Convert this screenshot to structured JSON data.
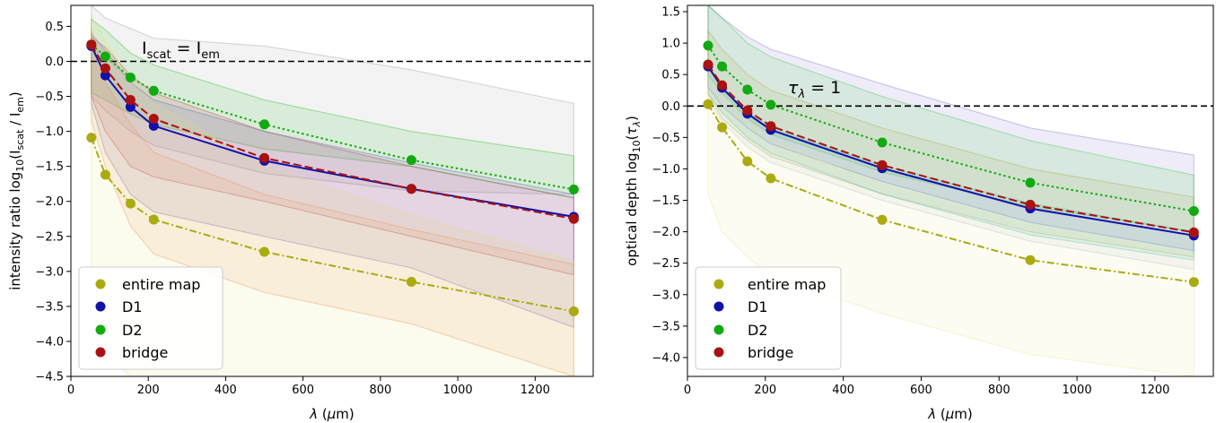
{
  "chart_data": [
    {
      "type": "line",
      "xlabel": "λ (μm)",
      "xlabel_parts": {
        "sym": "λ",
        "open": " (",
        "mu": "μ",
        "close": "m)"
      },
      "ylabel": "intensity ratio  log10(Iscat / Iem)",
      "ylabel_parts": {
        "pre": "intensity ratio  log",
        "sub10": "10",
        "open": "(I",
        "sub_a": "scat",
        "mid": " / I",
        "sub_b": "em",
        "close": ")"
      },
      "xlim": [
        0,
        1350
      ],
      "ylim": [
        -4.5,
        0.8
      ],
      "xticks": [
        0,
        200,
        400,
        600,
        800,
        1000,
        1200
      ],
      "yticks": [
        -4.5,
        -4.0,
        -3.5,
        -3.0,
        -2.5,
        -2.0,
        -1.5,
        -1.0,
        -0.5,
        0.0,
        0.5
      ],
      "ytick_labels": [
        "−4.5",
        "−4.0",
        "−3.5",
        "−3.0",
        "−2.5",
        "−2.0",
        "−1.5",
        "−1.0",
        "−0.5",
        "0.0",
        "0.5"
      ],
      "reference_line": {
        "y": 0,
        "style": "dashed",
        "label_parts": {
          "a": "I",
          "a_sub": "scat",
          "eq": " = ",
          "b": "I",
          "b_sub": "em"
        }
      },
      "x": [
        53,
        89,
        154,
        214,
        500,
        880,
        1300
      ],
      "series": [
        {
          "name": "entire map",
          "color": "#aaaa11",
          "dash": "dashdot",
          "values": [
            -1.09,
            -1.62,
            -2.03,
            -2.26,
            -2.72,
            -3.15,
            -3.57
          ]
        },
        {
          "name": "D1",
          "color": "#1010aa",
          "dash": "solid",
          "values": [
            0.22,
            -0.2,
            -0.65,
            -0.92,
            -1.42,
            -1.82,
            -2.22
          ]
        },
        {
          "name": "D2",
          "color": "#11aa11",
          "dash": "dotted",
          "values": [
            0.24,
            0.07,
            -0.23,
            -0.42,
            -0.9,
            -1.41,
            -1.83
          ]
        },
        {
          "name": "bridge",
          "color": "#aa1111",
          "dash": "dashed",
          "values": [
            0.24,
            -0.1,
            -0.55,
            -0.82,
            -1.38,
            -1.82,
            -2.25
          ]
        }
      ],
      "bands": [
        {
          "color": "#999999",
          "upper": [
            0.8,
            0.62,
            0.47,
            0.33,
            0.22,
            -0.12,
            -0.6
          ],
          "lower": [
            -0.5,
            -0.7,
            -1.0,
            -1.2,
            -1.6,
            -1.85,
            -1.9
          ]
        },
        {
          "color": "#22bb22",
          "upper": [
            0.6,
            0.45,
            0.12,
            -0.05,
            -0.55,
            -1.0,
            -1.35
          ],
          "lower": [
            -0.45,
            -0.55,
            -0.75,
            -0.9,
            -1.25,
            -1.5,
            -1.95
          ]
        },
        {
          "color": "#bb3333",
          "upper": [
            0.35,
            0.2,
            -0.2,
            -0.45,
            -1.0,
            -1.5,
            -1.95
          ],
          "lower": [
            -0.5,
            -1.0,
            -1.5,
            -1.65,
            -2.0,
            -2.5,
            -3.05
          ]
        },
        {
          "color": "#6655bb",
          "upper": [
            0.4,
            0.15,
            -0.3,
            -0.55,
            -1.0,
            -1.45,
            -1.9
          ],
          "lower": [
            -0.6,
            -1.3,
            -1.9,
            -2.15,
            -2.5,
            -2.95,
            -3.8
          ]
        },
        {
          "color": "#ee8844",
          "upper": [
            0.45,
            -0.3,
            -0.9,
            -1.3,
            -1.9,
            -2.4,
            -2.9
          ],
          "lower": [
            -0.85,
            -1.5,
            -2.35,
            -2.75,
            -3.3,
            -3.75,
            -4.5
          ]
        },
        {
          "color": "#e0e070",
          "upper": [
            0.65,
            0.3,
            -0.3,
            -0.6,
            -1.5,
            -2.2,
            -2.85
          ],
          "lower": [
            -3.2,
            -4.2,
            -4.5,
            -4.5,
            -4.5,
            -4.5,
            -4.5
          ]
        }
      ],
      "legend": {
        "placement": "lower-left",
        "entries": [
          "entire map",
          "D1",
          "D2",
          "bridge"
        ]
      },
      "grid": false
    },
    {
      "type": "line",
      "xlabel": "λ (μm)",
      "xlabel_parts": {
        "sym": "λ",
        "open": " (",
        "mu": "μ",
        "close": "m)"
      },
      "ylabel": "optical depth log10(τλ)",
      "ylabel_parts": {
        "pre": "optical depth log",
        "sub10": "10",
        "open": "(",
        "tau": "τ",
        "sub_l": "λ",
        "close": ")"
      },
      "xlim": [
        0,
        1350
      ],
      "ylim": [
        -4.3,
        1.6
      ],
      "xticks": [
        0,
        200,
        400,
        600,
        800,
        1000,
        1200
      ],
      "yticks": [
        -4.0,
        -3.5,
        -3.0,
        -2.5,
        -2.0,
        -1.5,
        -1.0,
        -0.5,
        0.0,
        0.5,
        1.0,
        1.5
      ],
      "ytick_labels": [
        "−4.0",
        "−3.5",
        "−3.0",
        "−2.5",
        "−2.0",
        "−1.5",
        "−1.0",
        "−0.5",
        "0.0",
        "0.5",
        "1.0",
        "1.5"
      ],
      "reference_line": {
        "y": 0,
        "style": "dashed",
        "label_parts": {
          "tau": "τ",
          "sub": "λ",
          "eq": " = 1"
        }
      },
      "x": [
        53,
        89,
        154,
        214,
        500,
        880,
        1300
      ],
      "series": [
        {
          "name": "entire map",
          "color": "#aaaa11",
          "dash": "dashdot",
          "values": [
            0.03,
            -0.34,
            -0.88,
            -1.15,
            -1.81,
            -2.45,
            -2.8
          ]
        },
        {
          "name": "D1",
          "color": "#1010aa",
          "dash": "solid",
          "values": [
            0.63,
            0.29,
            -0.12,
            -0.38,
            -0.99,
            -1.63,
            -2.06
          ]
        },
        {
          "name": "D2",
          "color": "#11aa11",
          "dash": "dotted",
          "values": [
            0.96,
            0.63,
            0.26,
            0.02,
            -0.58,
            -1.22,
            -1.67
          ]
        },
        {
          "name": "bridge",
          "color": "#aa1111",
          "dash": "dashed",
          "values": [
            0.66,
            0.33,
            -0.07,
            -0.32,
            -0.94,
            -1.57,
            -2.01
          ]
        }
      ],
      "bands": [
        {
          "color": "#7766cc",
          "upper": [
            1.6,
            1.4,
            1.1,
            0.9,
            0.35,
            -0.35,
            -0.78
          ],
          "lower": [
            0.3,
            0.0,
            -0.35,
            -0.6,
            -1.2,
            -1.85,
            -2.3
          ]
        },
        {
          "color": "#33cc33",
          "upper": [
            1.6,
            1.4,
            1.0,
            0.78,
            0.15,
            -0.55,
            -1.1
          ],
          "lower": [
            0.5,
            0.2,
            -0.2,
            -0.45,
            -1.05,
            -1.6,
            -2.0
          ]
        },
        {
          "color": "#aaaa44",
          "upper": [
            1.2,
            0.9,
            0.5,
            0.25,
            -0.35,
            -1.0,
            -1.45
          ],
          "lower": [
            0.2,
            -0.2,
            -0.55,
            -0.8,
            -1.4,
            -2.0,
            -2.4
          ]
        },
        {
          "color": "#33bbaa",
          "upper": [
            0.6,
            0.3,
            -0.1,
            -0.35,
            -0.95,
            -1.55,
            -2.0
          ],
          "lower": [
            0.2,
            -0.1,
            -0.5,
            -0.75,
            -1.4,
            -2.05,
            -2.45
          ]
        },
        {
          "color": "#aabbcc",
          "upper": [
            0.55,
            0.25,
            -0.15,
            -0.4,
            -1.0,
            -1.65,
            -2.05
          ],
          "lower": [
            0.1,
            -0.25,
            -0.65,
            -0.9,
            -1.5,
            -2.15,
            -2.6
          ]
        },
        {
          "color": "#e8e890",
          "upper": [
            0.6,
            0.2,
            -0.25,
            -0.55,
            -1.25,
            -1.9,
            -2.35
          ],
          "lower": [
            -1.4,
            -2.0,
            -2.4,
            -2.7,
            -3.3,
            -3.95,
            -4.3
          ]
        }
      ],
      "legend": {
        "placement": "lower-left",
        "entries": [
          "entire map",
          "D1",
          "D2",
          "bridge"
        ]
      },
      "grid": false
    }
  ]
}
